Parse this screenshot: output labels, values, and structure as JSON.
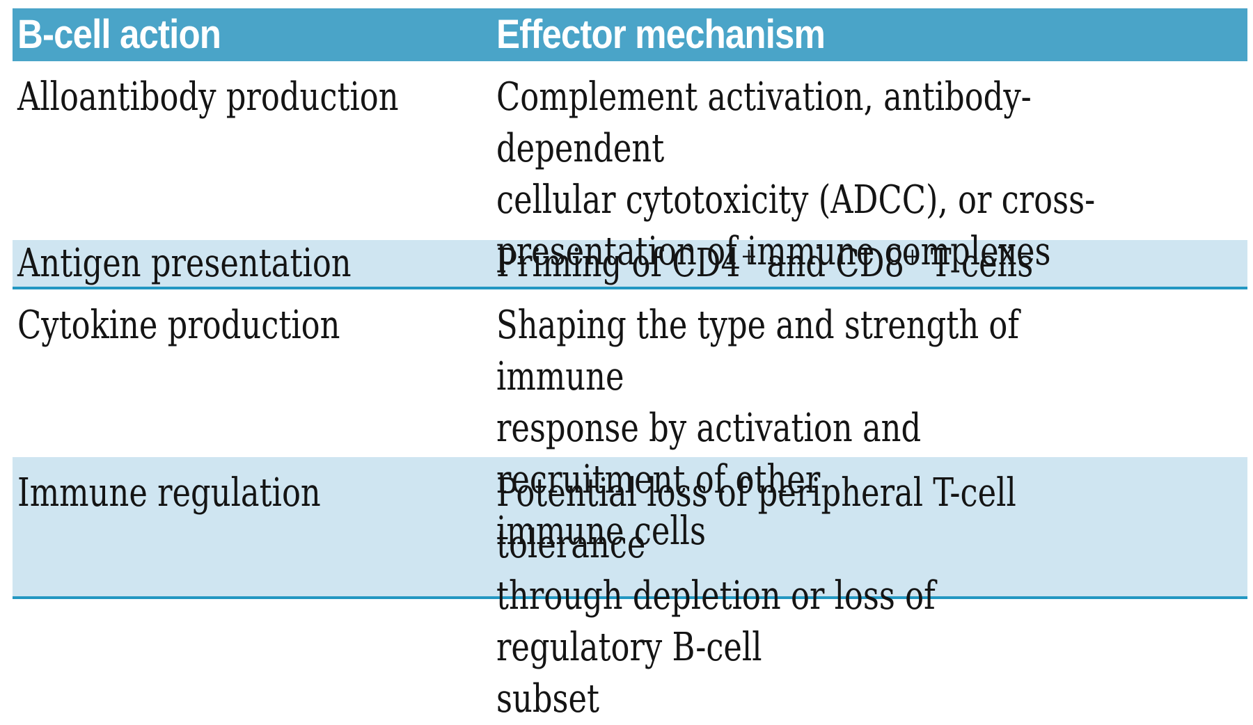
{
  "colors": {
    "header_bg": "#4aa4c8",
    "row_shade": "#cfe5f1",
    "rule": "#2397c2",
    "header_text": "#ffffff",
    "body_text": "#141414"
  },
  "table": {
    "columns": [
      {
        "label": "B-cell action"
      },
      {
        "label": "Effector mechanism"
      }
    ],
    "rows": [
      {
        "action": "Alloantibody production",
        "mechanism": "Complement activation, antibody-dependent\ncellular cytotoxicity (ADCC), or cross-\npresentation of immune complexes",
        "shaded": false
      },
      {
        "action": "Antigen presentation",
        "mechanism": "Priming of CD4⁺ and CD8⁺ T cells",
        "shaded": true
      },
      {
        "action": "Cytokine production",
        "mechanism": "Shaping the type and strength of immune\nresponse by activation and recruitment of other\nimmune cells",
        "shaded": false
      },
      {
        "action": "Immune regulation",
        "mechanism": "Potential loss of peripheral T-cell tolerance\nthrough depletion or loss of regulatory B-cell\nsubset",
        "shaded": true
      }
    ]
  }
}
